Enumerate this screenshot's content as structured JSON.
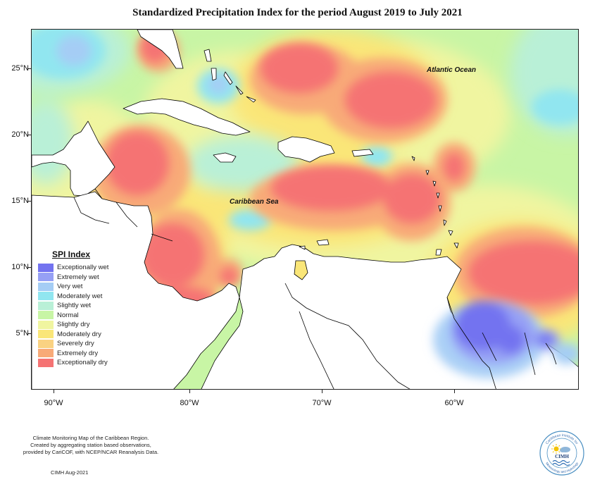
{
  "title": "Standardized Precipitation Index for the period August 2019 to July 2021",
  "lat_labels": [
    "25°N",
    "20°N",
    "15°N",
    "10°N",
    "5°N"
  ],
  "lon_labels": [
    "90°W",
    "80°W",
    "70°W",
    "60°W"
  ],
  "sea_labels": {
    "atlantic": "Atlantic Ocean",
    "caribbean": "Caribbean Sea"
  },
  "legend": {
    "title": "SPI Index",
    "items": [
      {
        "label": "Exceptionally wet",
        "color": "#7373f0"
      },
      {
        "label": "Extremely wet",
        "color": "#96a0f5"
      },
      {
        "label": "Very wet",
        "color": "#a5cdf5"
      },
      {
        "label": "Moderately wet",
        "color": "#91e6f0"
      },
      {
        "label": "Slightly wet",
        "color": "#b9f0d7"
      },
      {
        "label": "Normal",
        "color": "#c8f5a5"
      },
      {
        "label": "Slightly dry",
        "color": "#f0f5a0"
      },
      {
        "label": "Moderately dry",
        "color": "#fae678"
      },
      {
        "label": "Severely dry",
        "color": "#fad282"
      },
      {
        "label": "Extremely dry",
        "color": "#f8aa78"
      },
      {
        "label": "Exceptionally dry",
        "color": "#f57373"
      }
    ]
  },
  "footnote": [
    "Climate Monitoring Map of the Caribbean Region.",
    "Created by aggregating station based observations,",
    "provided by CariCOF, with NCEP/NCAR Reanalysis Data."
  ],
  "credit": "CIMH Aug-2021",
  "logo": {
    "center_text": "CIMH",
    "ring_text_top": "Caribbean Institute for",
    "ring_text_bottom": "Meteorology and Hydrology"
  }
}
